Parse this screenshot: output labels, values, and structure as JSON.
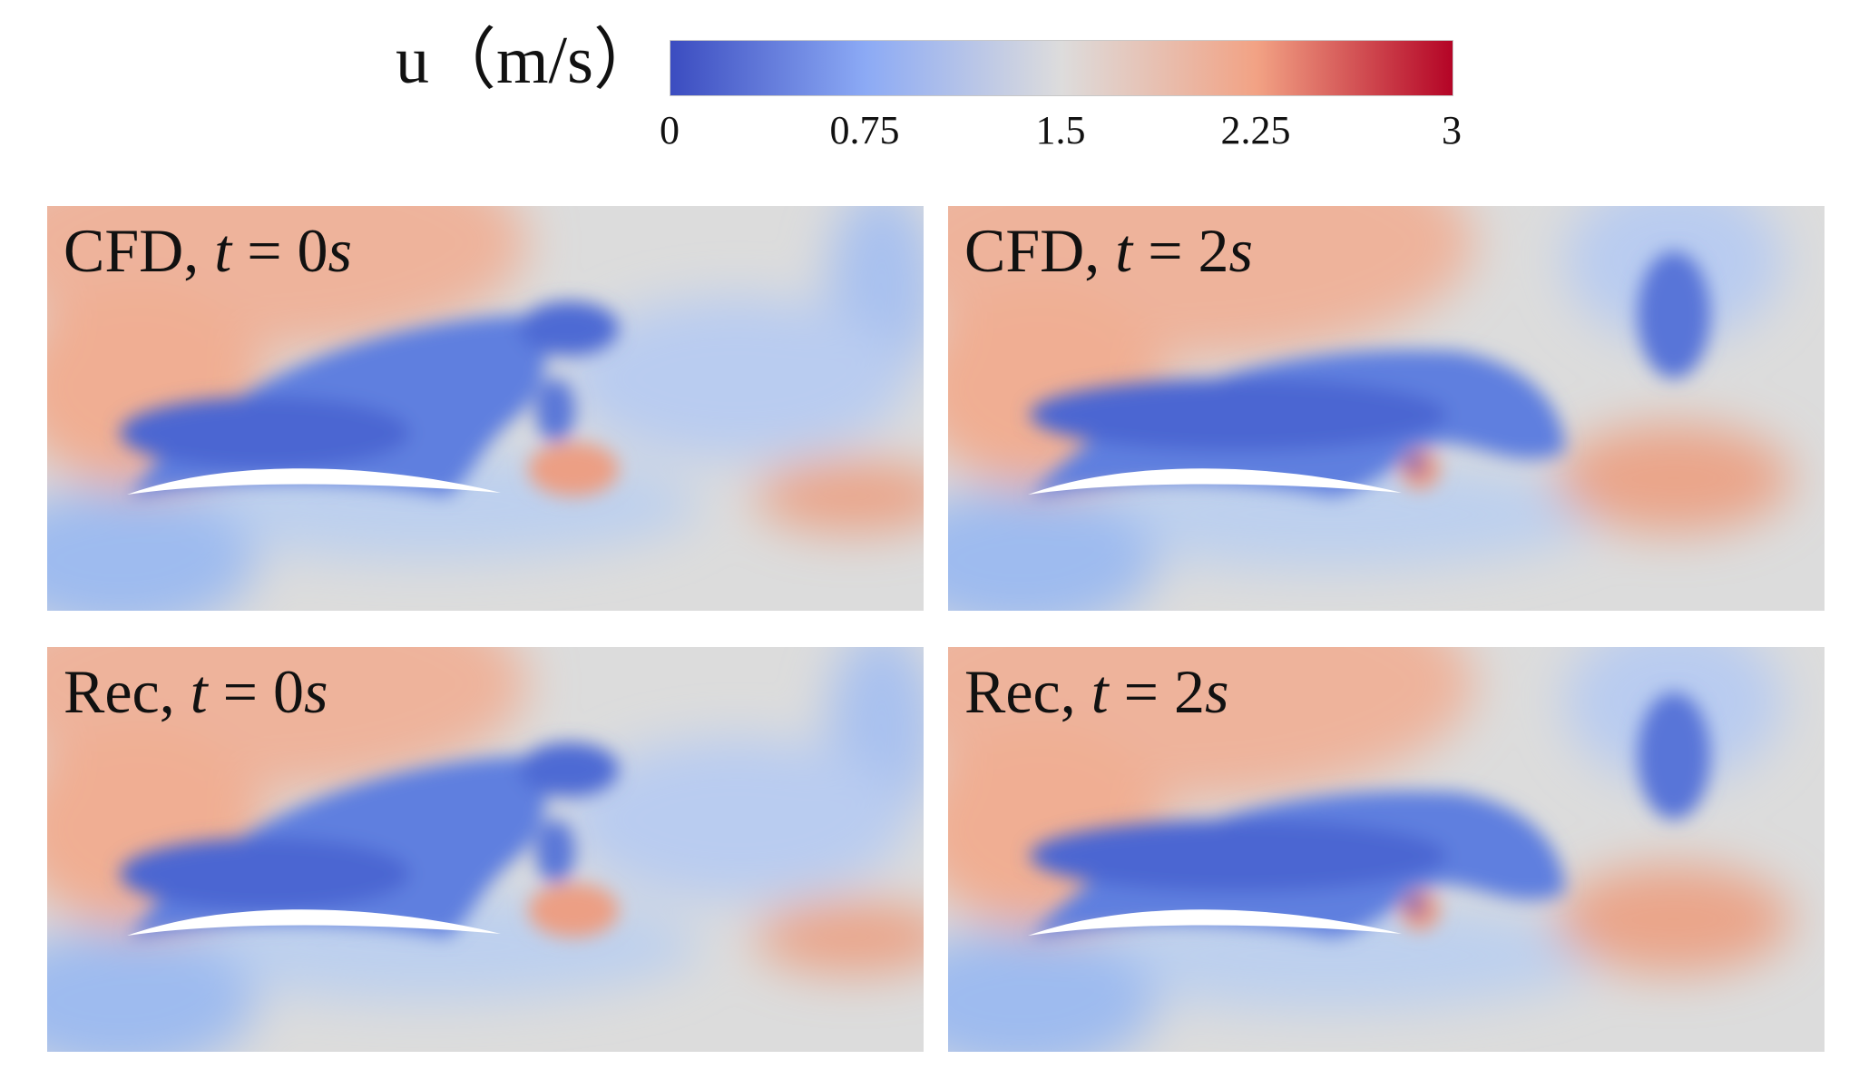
{
  "colorbar": {
    "variable": "u",
    "unit": "（m/s）",
    "min": 0,
    "max": 3,
    "ticks": [
      "0",
      "0.75",
      "1.5",
      "2.25",
      "3"
    ],
    "tick_values": [
      0,
      0.75,
      1.5,
      2.25,
      3
    ],
    "colors": [
      "#3b4cc0",
      "#8caaf5",
      "#dddcdc",
      "#f2a284",
      "#b40426"
    ]
  },
  "panels": [
    {
      "source": "CFD",
      "t_var": "t",
      "t_value": "0",
      "t_unit": "s",
      "time_s": 0
    },
    {
      "source": "CFD",
      "t_var": "t",
      "t_value": "2",
      "t_unit": "s",
      "time_s": 2
    },
    {
      "source": "Rec",
      "t_var": "t",
      "t_value": "0",
      "t_unit": "s",
      "time_s": 0
    },
    {
      "source": "Rec",
      "t_var": "t",
      "t_value": "2",
      "t_unit": "s",
      "time_s": 2
    }
  ]
}
